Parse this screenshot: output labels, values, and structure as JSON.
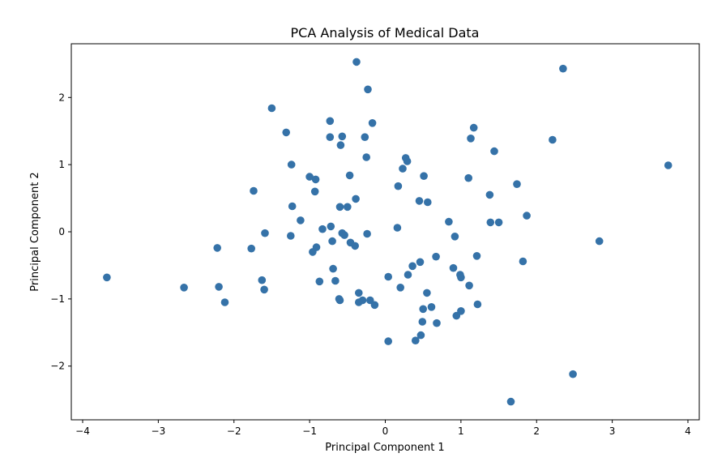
{
  "chart_data": {
    "type": "scatter",
    "title": "PCA Analysis of Medical Data",
    "xlabel": "Principal Component 1",
    "ylabel": "Principal Component 2",
    "xlim": [
      -4.15,
      4.15
    ],
    "ylim": [
      -2.8,
      2.8
    ],
    "xticks": [
      -4,
      -3,
      -2,
      -1,
      0,
      1,
      2,
      3,
      4
    ],
    "yticks": [
      -2,
      -1,
      0,
      1,
      2
    ],
    "xtick_labels": [
      "−4",
      "−3",
      "−2",
      "−1",
      "0",
      "1",
      "2",
      "3",
      "4"
    ],
    "ytick_labels": [
      "−2",
      "−1",
      "0",
      "1",
      "2"
    ],
    "grid": false,
    "color": "#3572a8",
    "series": [
      {
        "points": [
          [
            -3.68,
            -0.68
          ],
          [
            -2.66,
            -0.83
          ],
          [
            -2.2,
            -0.82
          ],
          [
            -2.12,
            -1.05
          ],
          [
            -2.22,
            -0.24
          ],
          [
            -1.77,
            -0.25
          ],
          [
            -1.74,
            0.61
          ],
          [
            -1.63,
            -0.72
          ],
          [
            -1.6,
            -0.86
          ],
          [
            -1.59,
            -0.02
          ],
          [
            -1.5,
            1.84
          ],
          [
            -1.31,
            1.48
          ],
          [
            -1.24,
            1.0
          ],
          [
            -1.23,
            0.38
          ],
          [
            -1.25,
            -0.06
          ],
          [
            -1.12,
            0.17
          ],
          [
            -1.0,
            0.82
          ],
          [
            -0.96,
            -0.3
          ],
          [
            -0.93,
            0.6
          ],
          [
            -0.92,
            0.78
          ],
          [
            -0.91,
            -0.23
          ],
          [
            -0.87,
            -0.74
          ],
          [
            -0.83,
            0.04
          ],
          [
            -0.73,
            1.65
          ],
          [
            -0.73,
            1.41
          ],
          [
            -0.72,
            0.08
          ],
          [
            -0.7,
            -0.14
          ],
          [
            -0.69,
            -0.55
          ],
          [
            -0.66,
            -0.73
          ],
          [
            -0.61,
            -1.0
          ],
          [
            -0.6,
            -1.02
          ],
          [
            -0.6,
            0.37
          ],
          [
            -0.59,
            1.29
          ],
          [
            -0.57,
            1.42
          ],
          [
            -0.57,
            -0.02
          ],
          [
            -0.54,
            -0.05
          ],
          [
            -0.5,
            0.37
          ],
          [
            -0.47,
            0.84
          ],
          [
            -0.46,
            -0.16
          ],
          [
            -0.4,
            -0.21
          ],
          [
            -0.39,
            0.49
          ],
          [
            -0.38,
            2.53
          ],
          [
            -0.35,
            -0.91
          ],
          [
            -0.35,
            -1.05
          ],
          [
            -0.3,
            -1.02
          ],
          [
            -0.27,
            1.41
          ],
          [
            -0.25,
            1.11
          ],
          [
            -0.24,
            -0.03
          ],
          [
            -0.23,
            2.12
          ],
          [
            -0.2,
            -1.02
          ],
          [
            -0.17,
            1.62
          ],
          [
            -0.14,
            -1.09
          ],
          [
            0.04,
            -0.67
          ],
          [
            0.04,
            -1.63
          ],
          [
            0.16,
            0.06
          ],
          [
            0.17,
            0.68
          ],
          [
            0.2,
            -0.83
          ],
          [
            0.23,
            0.94
          ],
          [
            0.27,
            1.1
          ],
          [
            0.29,
            1.05
          ],
          [
            0.3,
            -0.64
          ],
          [
            0.36,
            -0.51
          ],
          [
            0.4,
            -1.62
          ],
          [
            0.45,
            0.46
          ],
          [
            0.46,
            -0.45
          ],
          [
            0.47,
            -1.54
          ],
          [
            0.49,
            -1.34
          ],
          [
            0.5,
            -1.15
          ],
          [
            0.51,
            0.83
          ],
          [
            0.55,
            -0.91
          ],
          [
            0.56,
            0.44
          ],
          [
            0.61,
            -1.12
          ],
          [
            0.67,
            -0.37
          ],
          [
            0.68,
            -1.36
          ],
          [
            0.84,
            0.15
          ],
          [
            0.9,
            -0.54
          ],
          [
            0.92,
            -0.07
          ],
          [
            0.94,
            -1.25
          ],
          [
            0.99,
            -0.64
          ],
          [
            1.0,
            -0.68
          ],
          [
            1.0,
            -1.18
          ],
          [
            1.1,
            0.8
          ],
          [
            1.11,
            -0.8
          ],
          [
            1.13,
            1.39
          ],
          [
            1.17,
            1.55
          ],
          [
            1.21,
            -0.36
          ],
          [
            1.22,
            -1.08
          ],
          [
            1.38,
            0.55
          ],
          [
            1.39,
            0.14
          ],
          [
            1.44,
            1.2
          ],
          [
            1.5,
            0.14
          ],
          [
            1.66,
            -2.53
          ],
          [
            1.74,
            0.71
          ],
          [
            1.82,
            -0.44
          ],
          [
            1.87,
            0.24
          ],
          [
            2.21,
            1.37
          ],
          [
            2.35,
            2.43
          ],
          [
            2.48,
            -2.12
          ],
          [
            2.83,
            -0.14
          ],
          [
            3.74,
            0.99
          ]
        ]
      }
    ]
  }
}
